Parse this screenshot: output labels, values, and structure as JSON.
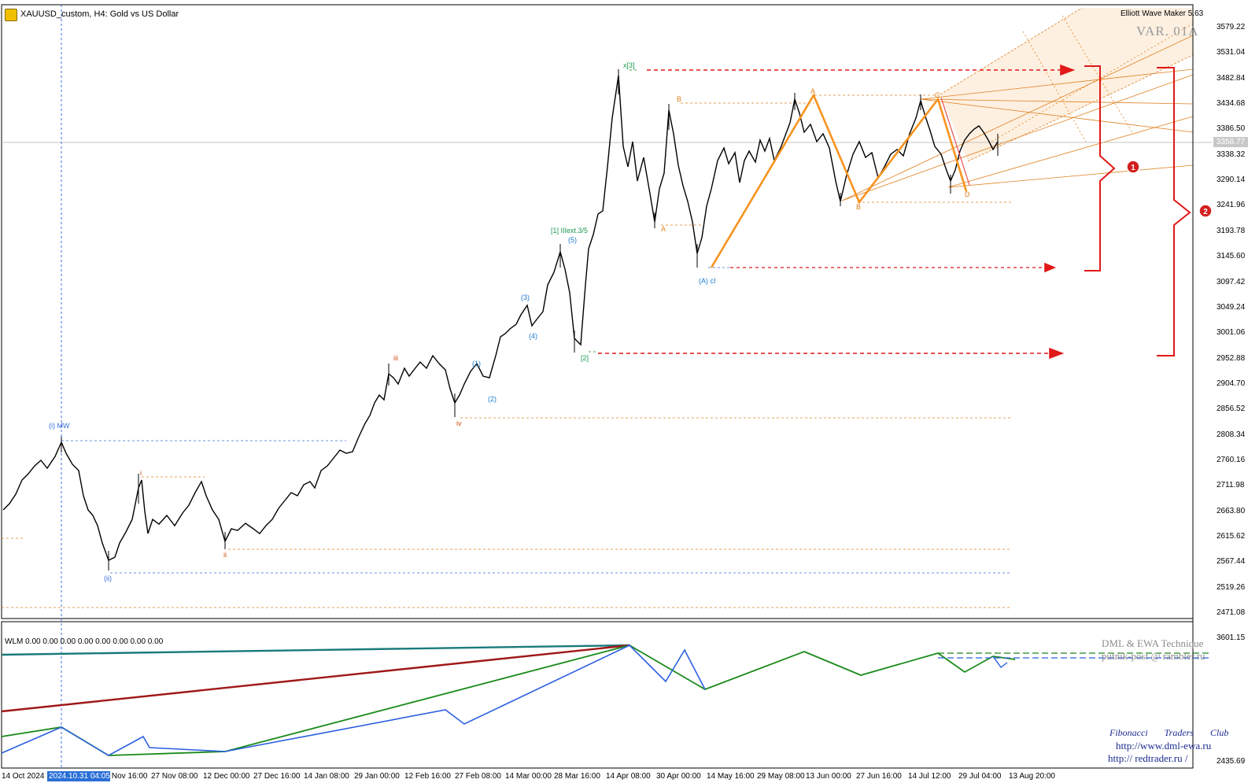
{
  "header": {
    "title": "XAUUSD_custom, H4:  Gold vs US Dollar",
    "indicator": "Elliott Wave Maker 5.63",
    "variant": "VAR. 01A",
    "logo_icon": "chart-logo-icon"
  },
  "price_axis": {
    "labels": [
      "3579.22",
      "3531.04",
      "3482.84",
      "3434.68",
      "3386.50",
      "3338.32",
      "3290.14",
      "3241.96",
      "3193.78",
      "3145.60",
      "3097.42",
      "3049.24",
      "3001.06",
      "2952.88",
      "2904.70",
      "2856.52",
      "2808.34",
      "2760.16",
      "2711.98",
      "2663.80",
      "2615.62",
      "2567.44",
      "2519.26",
      "2471.08"
    ],
    "current_price": "3358.77"
  },
  "sub_axis": {
    "labels": [
      "3601.15",
      "2435.69"
    ]
  },
  "time_axis": {
    "labels": [
      "14 Oct 2024",
      "12 Nov 16:00",
      "27 Nov 08:00",
      "12 Dec 00:00",
      "27 Dec 16:00",
      "14 Jan 08:00",
      "29 Jan 00:00",
      "12 Feb 16:00",
      "27 Feb 08:00",
      "14 Mar 00:00",
      "28 Mar 16:00",
      "14 Apr 08:00",
      "30 Apr 00:00",
      "14 May 16:00",
      "29 May 08:00",
      "13 Jun 00:00",
      "27 Jun 16:00",
      "14 Jul 12:00",
      "29 Jul 04:00",
      "13 Aug 20:00"
    ],
    "cursor_label": "2024.10.31 04:05"
  },
  "wave_labels": {
    "i_mw": "(i) MW",
    "ii_paren": "(ii)",
    "i": "i",
    "ii": "ii",
    "iii": "iii",
    "iv": "iv",
    "w1": "(1)",
    "w2": "(2)",
    "w3": "(3)",
    "w4": "(4)",
    "w5": "(5)",
    "ext": "[1] IIIext.3/5",
    "br2": "[2]",
    "x3": "x[3]",
    "A_low": "A",
    "B_top": "B",
    "c_low": "(A) cI",
    "A_top": "A",
    "B_low": "B",
    "C_top": "C",
    "D_low": "D"
  },
  "markers": {
    "one": "1",
    "two": "2"
  },
  "indicator_panel": {
    "wlm": "WLM 0.00 0.00 0.00 0.00 0.00 0.00 0.00 0.00",
    "dml": "DML & EWA Technique",
    "mail": "putnik-post @ rambler.ru",
    "club": "Fibonacci Traders Club",
    "url1": "http://www.dml-ewa.ru",
    "url2": "http:// redtrader.ru /"
  },
  "colors": {
    "candle": "#000000",
    "fib_orange": "#e08020",
    "zigzag": "#f7931e",
    "target_red": "#e11919",
    "blue_dotted": "#3b6fe0",
    "green_line": "#1a8a1a",
    "blue_line": "#2a5fe0",
    "maroon_line": "#a01818",
    "teal_line": "#1a7a7a"
  }
}
